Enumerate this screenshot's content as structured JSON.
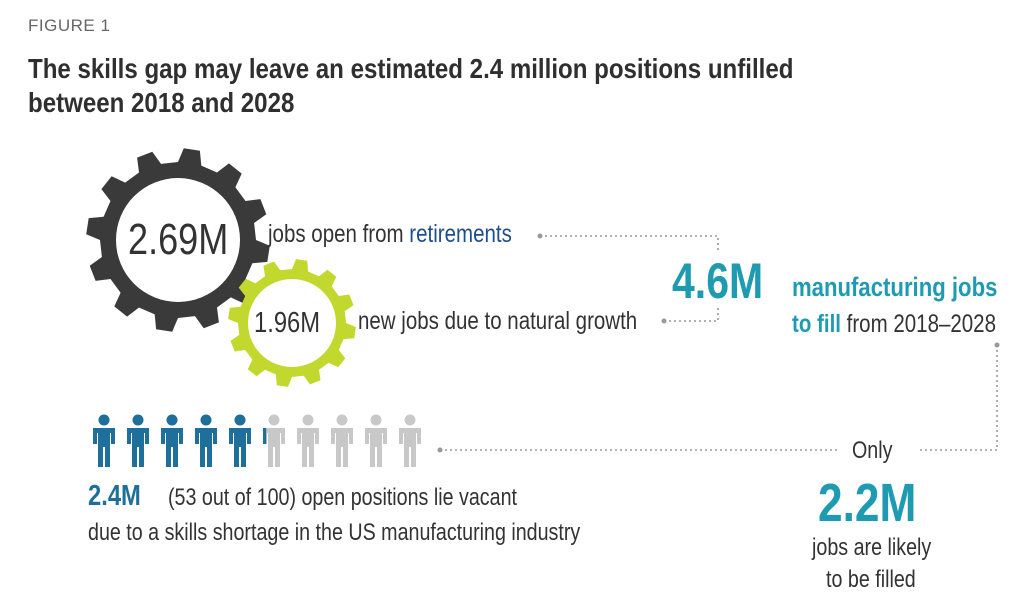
{
  "figure_label": "FIGURE 1",
  "title": "The skills gap may leave an estimated 2.4 million positions unfilled between 2018 and 2028",
  "retirements": {
    "value": "2.69M",
    "text_prefix": "jobs open from ",
    "text_highlight": "retirements"
  },
  "growth": {
    "value": "1.96M",
    "text": "new jobs due to natural growth"
  },
  "total": {
    "value": "4.6M",
    "text_bold": "manufacturing jobs",
    "text_bold2": "to fill",
    "text_rest": " from 2018–2028"
  },
  "vacant": {
    "value": "2.4M",
    "text_line1": " (53 out of 100) open positions lie vacant",
    "text_line2": "due to a skills shortage in the US manufacturing industry"
  },
  "filled": {
    "only_label": "Only",
    "value": "2.2M",
    "text_line1": "jobs are likely",
    "text_line2": "to be filled"
  },
  "people_icons": {
    "filled_fraction": 0.53,
    "icon_count": 10,
    "filled_color": "#1e6f9a",
    "empty_color": "#c8c8c8"
  },
  "colors": {
    "dark_gear": "#3a3a3a",
    "green_gear": "#c2d82e",
    "teal": "#1e9bb0",
    "dotted_line": "#999999"
  }
}
